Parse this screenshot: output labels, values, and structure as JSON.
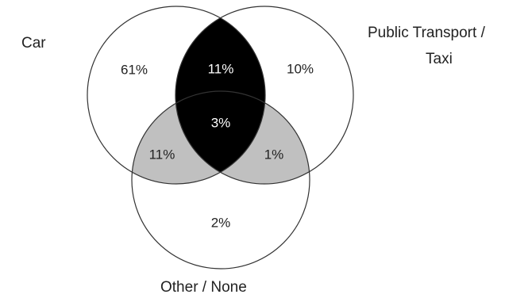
{
  "sets": {
    "car": {
      "label": "Car"
    },
    "public_transport": {
      "label_line1": "Public Transport /",
      "label_line2": "Taxi"
    },
    "other": {
      "label": "Other / None"
    }
  },
  "regions": {
    "car_only": {
      "value": "61%"
    },
    "public_only": {
      "value": "10%"
    },
    "other_only": {
      "value": "2%"
    },
    "car_public": {
      "value": "11%",
      "fill": "#000000",
      "text_color": "#ffffff"
    },
    "car_other": {
      "value": "11%",
      "fill": "#c0c0c0",
      "text_color": "#222222"
    },
    "public_other": {
      "value": "1%",
      "fill": "#c0c0c0",
      "text_color": "#222222"
    },
    "all_three": {
      "value": "3%",
      "fill": "#000000",
      "text_color": "#ffffff"
    }
  },
  "colors": {
    "outline": "#333333",
    "background": "#ffffff"
  }
}
